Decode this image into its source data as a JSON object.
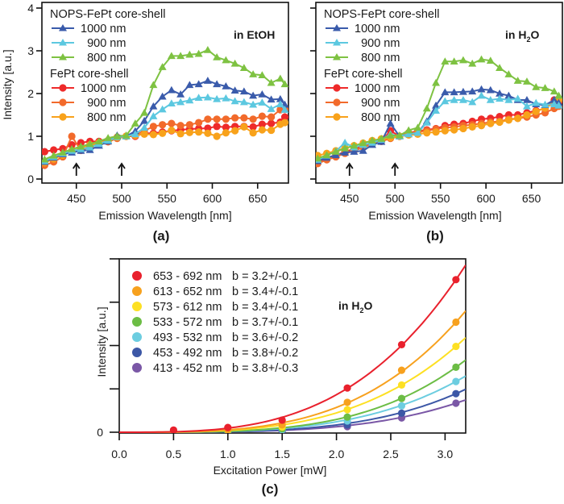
{
  "chart_data": [
    {
      "id": "a",
      "type": "line",
      "panel_label": "(a)",
      "annotation": "in EtOH",
      "annotation_sub": "",
      "annotation_tail": "",
      "xlabel": "Emission Wavelength [nm]",
      "ylabel": "Intensity [a.u.]",
      "xlim": [
        412,
        684
      ],
      "ylim": [
        0,
        4
      ],
      "xticks": [
        450,
        500,
        550,
        600,
        650
      ],
      "yticks": [
        0,
        1,
        2,
        3,
        4
      ],
      "arrows_at": [
        450,
        500
      ],
      "legend_groups": [
        {
          "title": "NOPS-FePt core-shell",
          "entries": [
            "1000 nm",
            "900 nm",
            "800 nm"
          ]
        },
        {
          "title": "FePt core-shell",
          "entries": [
            "1000 nm",
            "900 nm",
            "800 nm"
          ]
        }
      ],
      "x": [
        415,
        425,
        435,
        445,
        455,
        465,
        475,
        485,
        495,
        505,
        515,
        525,
        535,
        545,
        555,
        565,
        575,
        585,
        595,
        605,
        615,
        625,
        635,
        645,
        655,
        665,
        675,
        680
      ],
      "series": [
        {
          "name": "NOPS-FePt core-shell 1000 nm",
          "marker": "triangle",
          "color": "#3a5bab",
          "values": [
            0.4,
            0.5,
            0.58,
            0.62,
            0.66,
            0.68,
            0.78,
            0.88,
            1.02,
            1.0,
            1.12,
            1.36,
            1.7,
            1.93,
            2.08,
            1.98,
            2.2,
            2.22,
            2.3,
            2.22,
            2.17,
            2.07,
            2.05,
            1.95,
            1.98,
            1.86,
            1.87,
            1.74
          ]
        },
        {
          "name": "NOPS-FePt core-shell 900 nm",
          "marker": "triangle",
          "color": "#5cc8e0",
          "values": [
            0.42,
            0.52,
            0.6,
            0.66,
            0.7,
            0.74,
            0.82,
            0.9,
            0.98,
            1.0,
            1.05,
            1.2,
            1.47,
            1.63,
            1.77,
            1.8,
            1.84,
            1.9,
            1.91,
            1.87,
            1.89,
            1.82,
            1.8,
            1.74,
            1.79,
            1.64,
            1.75,
            1.62
          ]
        },
        {
          "name": "NOPS-FePt core-shell 800 nm",
          "marker": "triangle",
          "color": "#7ec242",
          "values": [
            0.46,
            0.55,
            0.62,
            0.7,
            0.76,
            0.82,
            0.88,
            0.96,
            1.0,
            1.02,
            1.3,
            1.55,
            2.2,
            2.62,
            2.88,
            2.88,
            2.91,
            2.93,
            3.02,
            2.85,
            2.78,
            2.7,
            2.6,
            2.45,
            2.43,
            2.25,
            2.35,
            2.22
          ]
        },
        {
          "name": "FePt core-shell 1000 nm",
          "marker": "circle",
          "color": "#ee2a2a",
          "values": [
            0.64,
            0.68,
            0.71,
            0.8,
            0.85,
            0.88,
            0.88,
            0.9,
            0.96,
            1.0,
            1.0,
            1.07,
            1.07,
            1.1,
            1.13,
            1.15,
            1.17,
            1.18,
            1.19,
            1.23,
            1.21,
            1.23,
            1.23,
            1.22,
            1.28,
            1.3,
            1.33,
            1.45
          ]
        },
        {
          "name": "FePt core-shell 900 nm",
          "marker": "circle",
          "color": "#f26a2b",
          "values": [
            0.32,
            0.4,
            0.52,
            1.0,
            0.67,
            0.75,
            0.85,
            0.87,
            0.95,
            1.0,
            1.03,
            1.13,
            1.23,
            1.27,
            1.3,
            1.25,
            1.27,
            1.32,
            1.4,
            1.4,
            1.4,
            1.43,
            1.43,
            1.4,
            1.47,
            1.45,
            1.62,
            1.63
          ]
        },
        {
          "name": "FePt core-shell 800 nm",
          "marker": "circle",
          "color": "#f8a21b",
          "values": [
            0.38,
            0.47,
            0.56,
            0.66,
            0.72,
            0.8,
            0.85,
            0.9,
            0.98,
            1.0,
            1.02,
            1.05,
            1.04,
            1.07,
            1.14,
            1.06,
            1.09,
            1.1,
            1.07,
            1.0,
            1.08,
            1.13,
            1.22,
            1.08,
            1.15,
            1.14,
            1.28,
            1.32
          ]
        }
      ]
    },
    {
      "id": "b",
      "type": "line",
      "panel_label": "(b)",
      "annotation": "in H",
      "annotation_sub": "2",
      "annotation_tail": "O",
      "xlabel": "Emission Wavelength [nm]",
      "ylabel": "",
      "xlim": [
        413,
        684
      ],
      "ylim": [
        0,
        4
      ],
      "xticks": [
        450,
        500,
        550,
        600,
        650
      ],
      "yticks": [
        0,
        1,
        2,
        3,
        4
      ],
      "show_ytick_labels": false,
      "arrows_at": [
        450,
        500
      ],
      "legend_groups": [
        {
          "title": "NOPS-FePt core-shell",
          "entries": [
            "1000 nm",
            "900 nm",
            "800 nm"
          ]
        },
        {
          "title": "FePt core-shell",
          "entries": [
            "1000 nm",
            "900 nm",
            "800 nm"
          ]
        }
      ],
      "x": [
        415,
        425,
        435,
        445,
        455,
        465,
        475,
        485,
        495,
        505,
        515,
        525,
        535,
        545,
        555,
        565,
        575,
        585,
        595,
        605,
        615,
        625,
        635,
        645,
        655,
        665,
        675,
        680
      ],
      "series": [
        {
          "name": "NOPS-FePt core-shell 1000 nm",
          "marker": "triangle",
          "color": "#3a5bab",
          "values": [
            0.42,
            0.5,
            0.56,
            0.62,
            0.64,
            0.66,
            0.8,
            0.87,
            1.3,
            1.0,
            1.05,
            1.08,
            1.35,
            1.72,
            2.03,
            2.03,
            2.04,
            2.05,
            2.1,
            2.08,
            2.0,
            1.95,
            1.85,
            1.85,
            1.75,
            1.73,
            1.85,
            1.78
          ]
        },
        {
          "name": "NOPS-FePt core-shell 900 nm",
          "marker": "triangle",
          "color": "#5cc8e0",
          "values": [
            0.45,
            0.55,
            0.65,
            0.85,
            0.74,
            0.8,
            0.85,
            0.92,
            1.05,
            1.0,
            1.05,
            1.08,
            1.32,
            1.6,
            1.82,
            1.85,
            1.85,
            1.8,
            1.95,
            1.85,
            1.88,
            1.85,
            1.88,
            1.7,
            1.78,
            1.74,
            1.75,
            1.72
          ]
        },
        {
          "name": "NOPS-FePt core-shell 800 nm",
          "marker": "triangle",
          "color": "#7ec242",
          "values": [
            0.48,
            0.56,
            0.64,
            0.72,
            0.78,
            0.84,
            0.9,
            0.94,
            1.02,
            1.02,
            1.14,
            1.2,
            1.65,
            2.25,
            2.75,
            2.75,
            2.78,
            2.7,
            2.8,
            2.77,
            2.6,
            2.45,
            2.3,
            2.28,
            2.15,
            2.13,
            2.05,
            1.95
          ]
        },
        {
          "name": "FePt core-shell 1000 nm",
          "marker": "circle",
          "color": "#ee2a2a",
          "values": [
            0.4,
            0.48,
            0.55,
            0.64,
            0.7,
            0.78,
            0.85,
            0.88,
            1.13,
            1.0,
            1.08,
            1.12,
            1.15,
            1.18,
            1.25,
            1.28,
            1.3,
            1.35,
            1.4,
            1.42,
            1.46,
            1.5,
            1.5,
            1.55,
            1.6,
            1.65,
            1.85,
            1.8
          ]
        },
        {
          "name": "FePt core-shell 900 nm",
          "marker": "circle",
          "color": "#f26a2b",
          "values": [
            0.36,
            0.45,
            0.52,
            0.6,
            0.66,
            0.74,
            0.82,
            0.88,
            0.95,
            1.0,
            1.07,
            1.1,
            1.13,
            1.17,
            1.2,
            1.22,
            1.25,
            1.27,
            1.3,
            1.33,
            1.35,
            1.4,
            1.42,
            1.45,
            1.5,
            1.55,
            1.65,
            1.7
          ]
        },
        {
          "name": "FePt core-shell 800 nm",
          "marker": "circle",
          "color": "#f8a21b",
          "values": [
            0.55,
            0.6,
            0.66,
            0.72,
            0.78,
            0.84,
            0.9,
            0.94,
            0.97,
            1.0,
            1.03,
            1.05,
            1.08,
            1.1,
            1.13,
            1.15,
            1.18,
            1.22,
            1.25,
            1.3,
            1.33,
            1.38,
            1.42,
            1.5,
            1.58,
            1.66,
            1.78,
            1.85
          ]
        }
      ]
    },
    {
      "id": "c",
      "type": "scatter",
      "panel_label": "(c)",
      "annotation": "in H",
      "annotation_sub": "2",
      "annotation_tail": "O",
      "xlabel": "Excitation Power [mW]",
      "ylabel": "Intensity [a.u.]",
      "xlim": [
        0,
        3.19
      ],
      "ylim": [
        0,
        4
      ],
      "xticks": [
        "0.0",
        "0.5",
        "1.0",
        "1.5",
        "2.0",
        "2.5",
        "3.0"
      ],
      "yticks": [
        0,
        1,
        2,
        3,
        4
      ],
      "ytick_labels": [
        "0",
        "",
        "",
        "",
        ""
      ],
      "fit": "power law, y = a*x^b",
      "x": [
        0.5,
        1.0,
        1.5,
        2.1,
        2.6,
        3.1
      ],
      "series": [
        {
          "name": "653 - 692 nm",
          "fit_label": "b = 3.2+/-0.1",
          "b": 3.2,
          "color": "#e9212d",
          "values": [
            0.05,
            0.11,
            0.28,
            1.02,
            2.02,
            3.52
          ]
        },
        {
          "name": "613 - 652 nm",
          "fit_label": "b = 3.4+/-0.1",
          "b": 3.4,
          "color": "#f7a11e",
          "values": [
            0.02,
            0.06,
            0.17,
            0.69,
            1.43,
            2.54
          ]
        },
        {
          "name": "573 - 612 nm",
          "fit_label": "b = 3.4+/-0.1",
          "b": 3.4,
          "color": "#fde023",
          "values": [
            0.01,
            0.05,
            0.12,
            0.52,
            1.09,
            1.98
          ]
        },
        {
          "name": "533 - 572 nm",
          "fit_label": "b = 3.7+/-0.1",
          "b": 3.7,
          "color": "#6cbd45",
          "values": [
            0.01,
            0.03,
            0.08,
            0.35,
            0.78,
            1.5
          ]
        },
        {
          "name": "493 - 532 nm",
          "fit_label": "b = 3.6+/-0.2",
          "b": 3.6,
          "color": "#6ccde0",
          "values": [
            0.0,
            0.02,
            0.06,
            0.26,
            0.61,
            1.17
          ]
        },
        {
          "name": "453 - 492 nm",
          "fit_label": "b = 3.8+/-0.2",
          "b": 3.8,
          "color": "#3c57a6",
          "values": [
            0.0,
            0.01,
            0.04,
            0.17,
            0.44,
            0.89
          ]
        },
        {
          "name": "413 - 452 nm",
          "fit_label": "b = 3.8+/-0.3",
          "b": 3.8,
          "color": "#7a57a6",
          "values": [
            0.0,
            0.01,
            0.03,
            0.13,
            0.33,
            0.67
          ]
        }
      ]
    }
  ]
}
